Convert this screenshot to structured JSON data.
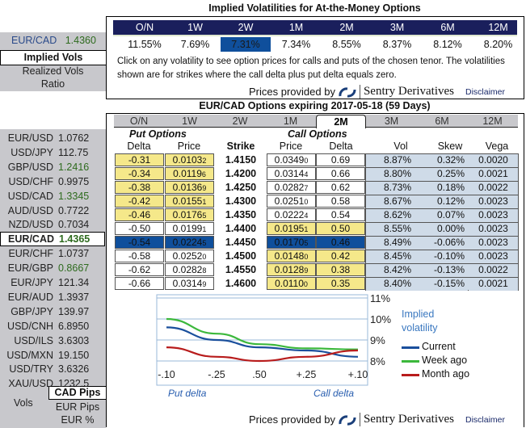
{
  "atm": {
    "title": "Implied Volatilities for At-the-Money Options",
    "tenors": [
      "O/N",
      "1W",
      "2W",
      "1M",
      "2M",
      "3M",
      "6M",
      "12M"
    ],
    "vols": [
      "11.55%",
      "7.69%",
      "7.31%",
      "7.34%",
      "8.55%",
      "8.37%",
      "8.12%",
      "8.20%"
    ],
    "selected_tenor": "2W",
    "note": "Click on any volatility to see option prices for calls and puts of the chosen tenor. The volatilities shown are for strikes where the call delta plus put delta equals zero.",
    "provided_by": "Prices provided by",
    "provider": "Sentry Derivatives",
    "disclaimer": "Disclaimer"
  },
  "sidebar_top": {
    "pair": "EUR/CAD",
    "rate": "1.4360",
    "menu": [
      "Implied Vols",
      "Realized Vols",
      "Ratio"
    ],
    "selected": "Implied Vols"
  },
  "options": {
    "title": "EUR/CAD Options expiring 2017-05-18 (59 Days)",
    "tabs": [
      "O/N",
      "1W",
      "2W",
      "1M",
      "2M",
      "3M",
      "6M",
      "12M"
    ],
    "active_tab": "2M",
    "put_label": "Put Options",
    "call_label": "Call Options",
    "headers": {
      "put_delta": "Delta",
      "put_price": "Price",
      "strike": "Strike",
      "call_price": "Price",
      "call_delta": "Delta",
      "vol": "Vol",
      "skew": "Skew",
      "vega": "Vega"
    },
    "rows": [
      {
        "put_delta": "-0.31",
        "put_price": "0.01032",
        "strike": "1.4150",
        "call_price": "0.03490",
        "call_delta": "0.69",
        "vol": "8.87%",
        "skew": "0.32%",
        "vega": "0.0020"
      },
      {
        "put_delta": "-0.34",
        "put_price": "0.01196",
        "strike": "1.4200",
        "call_price": "0.03144",
        "call_delta": "0.66",
        "vol": "8.80%",
        "skew": "0.25%",
        "vega": "0.0021"
      },
      {
        "put_delta": "-0.38",
        "put_price": "0.01369",
        "strike": "1.4250",
        "call_price": "0.02827",
        "call_delta": "0.62",
        "vol": "8.73%",
        "skew": "0.18%",
        "vega": "0.0022"
      },
      {
        "put_delta": "-0.42",
        "put_price": "0.01551",
        "strike": "1.4300",
        "call_price": "0.02510",
        "call_delta": "0.58",
        "vol": "8.67%",
        "skew": "0.12%",
        "vega": "0.0023"
      },
      {
        "put_delta": "-0.46",
        "put_price": "0.01765",
        "strike": "1.4350",
        "call_price": "0.02224",
        "call_delta": "0.54",
        "vol": "8.62%",
        "skew": "0.07%",
        "vega": "0.0023"
      },
      {
        "put_delta": "-0.50",
        "put_price": "0.01991",
        "strike": "1.4400",
        "call_price": "0.01951",
        "call_delta": "0.50",
        "vol": "8.55%",
        "skew": "0.00%",
        "vega": "0.0023"
      },
      {
        "put_delta": "-0.54",
        "put_price": "0.02245",
        "strike": "1.4450",
        "call_price": "0.01705",
        "call_delta": "0.46",
        "vol": "8.49%",
        "skew": "-0.06%",
        "vega": "0.0023"
      },
      {
        "put_delta": "-0.58",
        "put_price": "0.02520",
        "strike": "1.4500",
        "call_price": "0.01480",
        "call_delta": "0.42",
        "vol": "8.45%",
        "skew": "-0.10%",
        "vega": "0.0023"
      },
      {
        "put_delta": "-0.62",
        "put_price": "0.02828",
        "strike": "1.4550",
        "call_price": "0.01289",
        "call_delta": "0.38",
        "vol": "8.42%",
        "skew": "-0.13%",
        "vega": "0.0022"
      },
      {
        "put_delta": "-0.66",
        "put_price": "0.03149",
        "strike": "1.4600",
        "call_price": "0.01100",
        "call_delta": "0.35",
        "vol": "8.40%",
        "skew": "-0.15%",
        "vega": "0.0021"
      }
    ],
    "selected_strike": "1.4450",
    "provided_by": "Prices provided by",
    "provider": "Sentry Derivatives",
    "disclaimer": "Disclaimer"
  },
  "pairs": [
    {
      "pair": "EUR/USD",
      "rate": "1.0762"
    },
    {
      "pair": "USD/JPY",
      "rate": "112.75"
    },
    {
      "pair": "GBP/USD",
      "rate": "1.2416",
      "up": true
    },
    {
      "pair": "USD/CHF",
      "rate": "0.9975"
    },
    {
      "pair": "USD/CAD",
      "rate": "1.3345",
      "up": true
    },
    {
      "pair": "AUD/USD",
      "rate": "0.7722"
    },
    {
      "pair": "NZD/USD",
      "rate": "0.7034"
    },
    {
      "pair": "EUR/CAD",
      "rate": "1.4365",
      "up": true,
      "selected": true
    },
    {
      "pair": "EUR/CHF",
      "rate": "1.0737"
    },
    {
      "pair": "EUR/GBP",
      "rate": "0.8667",
      "up": true
    },
    {
      "pair": "EUR/JPY",
      "rate": "121.34"
    },
    {
      "pair": "EUR/AUD",
      "rate": "1.3937"
    },
    {
      "pair": "GBP/JPY",
      "rate": "139.97"
    },
    {
      "pair": "USD/CNH",
      "rate": "6.8950"
    },
    {
      "pair": "USD/ILS",
      "rate": "3.6303"
    },
    {
      "pair": "USD/MXN",
      "rate": "19.150"
    },
    {
      "pair": "USD/TRY",
      "rate": "3.6326"
    },
    {
      "pair": "XAU/USD",
      "rate": "1232.5"
    }
  ],
  "units": {
    "label": "Vols",
    "options": [
      "CAD Pips",
      "EUR Pips",
      "EUR %"
    ],
    "selected": "CAD Pips"
  },
  "colors": {
    "navy": "#1a1f5c",
    "selected_blue": "#0f4f9c",
    "highlight_yellow": "#f5e88a",
    "light_blue": "#cfdbe8",
    "up_green": "#2e6b1e"
  },
  "chart_data": {
    "type": "line",
    "categories": [
      "-.10",
      "-.25",
      ".50",
      "+.25",
      "+.10"
    ],
    "ylim": [
      7.6,
      11
    ],
    "yticks": [
      "11%",
      "10%",
      "9%",
      "8%"
    ],
    "ytick_values": [
      11,
      10,
      9,
      8
    ],
    "legend_title": "Implied volatility",
    "xlabel_left": "Put delta",
    "xlabel_right": "Call delta",
    "grid": true,
    "legend": "right",
    "series": [
      {
        "name": "Current",
        "color": "#1a4f9c",
        "values": [
          9.6,
          9.0,
          8.65,
          8.5,
          8.2
        ]
      },
      {
        "name": "Week ago",
        "color": "#3cb83c",
        "values": [
          10.0,
          9.3,
          8.8,
          8.6,
          8.55
        ]
      },
      {
        "name": "Month ago",
        "color": "#b81c1c",
        "values": [
          8.65,
          8.2,
          8.0,
          8.2,
          8.5
        ]
      }
    ]
  }
}
